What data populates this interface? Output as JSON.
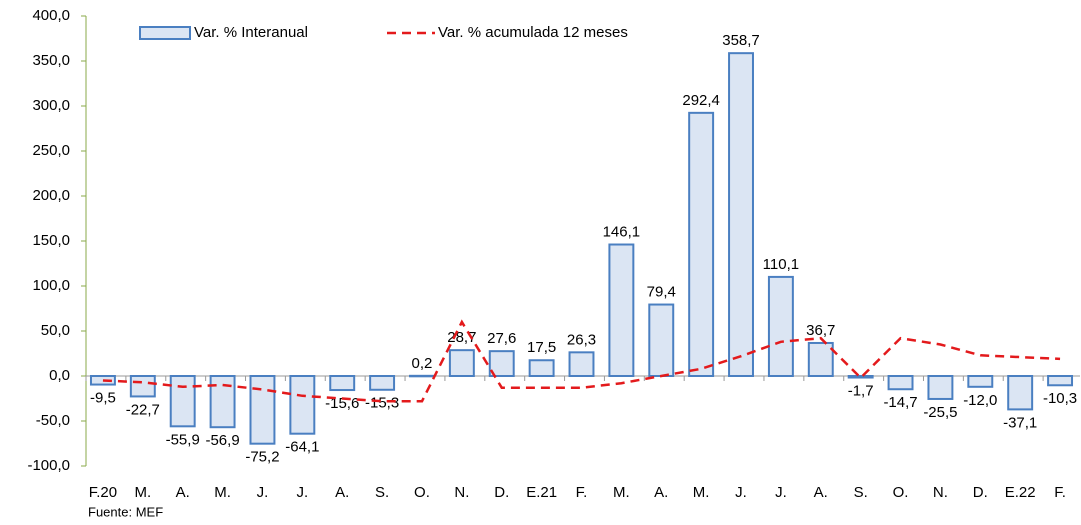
{
  "chart_data": {
    "type": "bar_line",
    "categories": [
      "F.20",
      "M.",
      "A.",
      "M.",
      "J.",
      "J.",
      "A.",
      "S.",
      "O.",
      "N.",
      "D.",
      "E.21",
      "F.",
      "M.",
      "A.",
      "M.",
      "J.",
      "J.",
      "A.",
      "S.",
      "O.",
      "N.",
      "D.",
      "E.22",
      "F."
    ],
    "series": [
      {
        "name": "Var. % Interanual",
        "type": "bar",
        "color": "#dbe5f3",
        "edge_color": "#4a7fc1",
        "values": [
          -9.5,
          -22.7,
          -55.9,
          -56.9,
          -75.2,
          -64.1,
          -15.6,
          -15.3,
          0.2,
          28.7,
          27.6,
          17.5,
          26.3,
          146.1,
          79.4,
          292.4,
          358.7,
          110.1,
          36.7,
          -1.7,
          -14.7,
          -25.5,
          -12.0,
          -37.1,
          -10.3
        ],
        "value_labels": [
          "-9,5",
          "-22,7",
          "-55,9",
          "-56,9",
          "-75,2",
          "-64,1",
          "-15,6",
          "-15,3",
          "0,2",
          "28,7",
          "27,6",
          "17,5",
          "26,3",
          "146,1",
          "79,4",
          "292,4",
          "358,7",
          "110,1",
          "36,7",
          "-1,7",
          "-14,7",
          "-25,5",
          "-12,0",
          "-37,1",
          "-10,3"
        ]
      },
      {
        "name": "Var. % acumulada 12 meses",
        "type": "line",
        "color": "#e31a1c",
        "values": [
          -5,
          -7,
          -12,
          -10,
          -15,
          -22,
          -25,
          -28,
          -28,
          60,
          -13,
          -13,
          -13,
          -8,
          0,
          8,
          22,
          38,
          42,
          -2,
          42,
          35,
          23,
          21,
          19
        ]
      }
    ],
    "ylim": [
      -100,
      400
    ],
    "yticks": [
      {
        "value": -100,
        "label": "-100,0"
      },
      {
        "value": -50,
        "label": "-50,0"
      },
      {
        "value": 0,
        "label": "0,0"
      },
      {
        "value": 50,
        "label": "50,0"
      },
      {
        "value": 100,
        "label": "100,0"
      },
      {
        "value": 150,
        "label": "150,0"
      },
      {
        "value": 200,
        "label": "200,0"
      },
      {
        "value": 250,
        "label": "250,0"
      },
      {
        "value": 300,
        "label": "300,0"
      },
      {
        "value": 350,
        "label": "350,0"
      },
      {
        "value": 400,
        "label": "400,0"
      }
    ],
    "source": "Fuente: MEF",
    "axis_color": "#8aa84a"
  }
}
